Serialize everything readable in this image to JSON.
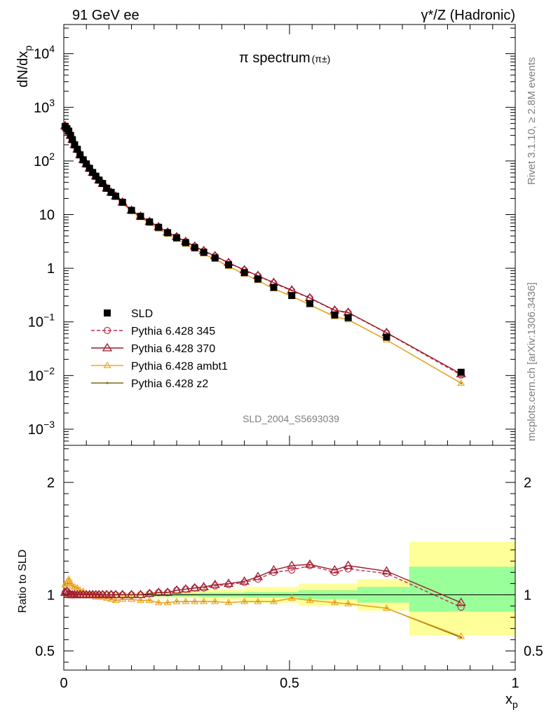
{
  "header": {
    "left": "91 GeV ee",
    "right": "γ*/Z (Hadronic)"
  },
  "side_labels": {
    "rivet": "Rivet 3.1.10, ≥ 2.8M events",
    "mcplots": "mcplots.cern.ch [arXiv:1306.3436]"
  },
  "chart_data": [
    {
      "type": "scatter",
      "panel": "main",
      "title": "π spectrum",
      "title_suffix": "(π±)",
      "ylabel": "dN/dx",
      "ylabel_sub": "p",
      "yscale": "log",
      "ylim": [
        0.0005,
        35000
      ],
      "xlim": [
        0,
        1
      ],
      "y_ticks": [
        {
          "v": 10000,
          "label": "10",
          "sup": "4"
        },
        {
          "v": 1000,
          "label": "10",
          "sup": "3"
        },
        {
          "v": 100,
          "label": "10",
          "sup": "2"
        },
        {
          "v": 10,
          "label": "10",
          "sup": ""
        },
        {
          "v": 1,
          "label": "1",
          "sup": ""
        },
        {
          "v": 0.1,
          "label": "10",
          "sup": "−1"
        },
        {
          "v": 0.01,
          "label": "10",
          "sup": "−2"
        },
        {
          "v": 0.001,
          "label": "10",
          "sup": "−3"
        }
      ],
      "watermark": "SLD_2004_S5693039",
      "legend_position": "bottom-left",
      "x": [
        0.003,
        0.007,
        0.011,
        0.015,
        0.019,
        0.024,
        0.03,
        0.036,
        0.043,
        0.05,
        0.057,
        0.064,
        0.071,
        0.078,
        0.086,
        0.095,
        0.105,
        0.115,
        0.13,
        0.15,
        0.17,
        0.19,
        0.21,
        0.23,
        0.25,
        0.27,
        0.29,
        0.31,
        0.335,
        0.365,
        0.4,
        0.43,
        0.465,
        0.505,
        0.545,
        0.6,
        0.63,
        0.715,
        0.88
      ],
      "series": [
        {
          "name": "SLD",
          "color": "#000000",
          "marker": "square",
          "line": "none",
          "values": [
            440,
            400,
            360,
            300,
            250,
            200,
            165,
            130,
            105,
            88,
            73,
            61,
            52,
            44,
            38,
            31,
            26,
            22,
            17,
            12,
            9.3,
            7.3,
            5.8,
            4.6,
            3.7,
            3.0,
            2.42,
            1.98,
            1.56,
            1.16,
            0.83,
            0.63,
            0.44,
            0.31,
            0.22,
            0.135,
            0.12,
            0.052,
            0.0115
          ]
        },
        {
          "name": "Pythia 6.428 345",
          "color": "#c0304a",
          "marker": "circle",
          "line": "dashed",
          "values": [
            450,
            410,
            365,
            300,
            250,
            200,
            165,
            130,
            105,
            88,
            73,
            61,
            52,
            44,
            38,
            31,
            26,
            22,
            17,
            12,
            9.3,
            7.4,
            5.9,
            4.7,
            3.85,
            3.15,
            2.56,
            2.1,
            1.68,
            1.26,
            0.92,
            0.72,
            0.53,
            0.38,
            0.277,
            0.162,
            0.148,
            0.062,
            0.0102
          ]
        },
        {
          "name": "Pythia 6.428 370",
          "color": "#9b1c2e",
          "marker": "triangle-open",
          "line": "solid",
          "values": [
            450,
            410,
            360,
            300,
            250,
            200,
            165,
            130,
            105,
            88,
            73,
            61,
            52,
            44,
            38,
            31,
            26,
            22,
            17,
            12,
            9.3,
            7.4,
            5.9,
            4.7,
            3.85,
            3.15,
            2.57,
            2.12,
            1.7,
            1.27,
            0.93,
            0.73,
            0.54,
            0.39,
            0.28,
            0.165,
            0.15,
            0.063,
            0.0107
          ]
        },
        {
          "name": "Pythia 6.428 ambt1",
          "color": "#f0a820",
          "marker": "triangle-small",
          "line": "solid",
          "values": [
            480,
            440,
            410,
            330,
            270,
            215,
            175,
            135,
            108,
            88,
            73,
            61,
            51,
            43,
            37,
            30,
            25,
            21,
            16.3,
            11.5,
            8.8,
            6.9,
            5.4,
            4.3,
            3.48,
            2.82,
            2.28,
            1.86,
            1.46,
            1.08,
            0.78,
            0.59,
            0.415,
            0.3,
            0.209,
            0.125,
            0.11,
            0.046,
            0.0072
          ]
        },
        {
          "name": "Pythia 6.428 z2",
          "color": "#7a6a12",
          "marker": "dot",
          "line": "solid",
          "values": [
            480,
            440,
            410,
            330,
            270,
            215,
            175,
            135,
            108,
            88,
            73,
            61,
            51,
            43,
            37,
            30,
            25,
            21,
            16.3,
            11.5,
            8.8,
            6.9,
            5.4,
            4.3,
            3.48,
            2.82,
            2.28,
            1.86,
            1.46,
            1.08,
            0.78,
            0.59,
            0.415,
            0.3,
            0.209,
            0.125,
            0.11,
            0.046,
            0.0072
          ]
        }
      ]
    },
    {
      "type": "line",
      "panel": "ratio",
      "ylabel": "Ratio to SLD",
      "xlabel": "x",
      "xlabel_sub": "p",
      "ylim": [
        0.33,
        2.33
      ],
      "xlim": [
        0,
        1
      ],
      "y_ticks": [
        {
          "v": 0.5,
          "label": "0.5"
        },
        {
          "v": 1,
          "label": "1"
        },
        {
          "v": 2,
          "label": "2"
        }
      ],
      "x_ticks": [
        {
          "v": 0,
          "label": "0"
        },
        {
          "v": 0.5,
          "label": "0.5"
        },
        {
          "v": 1,
          "label": "1"
        }
      ],
      "bands": [
        {
          "x0": 0.0,
          "x1": 0.2,
          "stat_lo": 0.99,
          "stat_hi": 1.01,
          "tot_lo": 0.98,
          "tot_hi": 1.02
        },
        {
          "x0": 0.2,
          "x1": 0.3,
          "stat_lo": 0.985,
          "stat_hi": 1.015,
          "tot_lo": 0.97,
          "tot_hi": 1.03
        },
        {
          "x0": 0.3,
          "x1": 0.4,
          "stat_lo": 0.98,
          "stat_hi": 1.02,
          "tot_lo": 0.95,
          "tot_hi": 1.05
        },
        {
          "x0": 0.4,
          "x1": 0.52,
          "stat_lo": 0.975,
          "stat_hi": 1.025,
          "tot_lo": 0.93,
          "tot_hi": 1.07
        },
        {
          "x0": 0.52,
          "x1": 0.65,
          "stat_lo": 0.96,
          "stat_hi": 1.04,
          "tot_lo": 0.9,
          "tot_hi": 1.1
        },
        {
          "x0": 0.65,
          "x1": 0.765,
          "stat_lo": 0.93,
          "stat_hi": 1.07,
          "tot_lo": 0.86,
          "tot_hi": 1.14
        },
        {
          "x0": 0.765,
          "x1": 1.0,
          "stat_lo": 0.85,
          "stat_hi": 1.25,
          "tot_lo": 0.64,
          "tot_hi": 1.47
        }
      ],
      "band_colors": {
        "stat": "#99ff99",
        "total": "#ffff99"
      },
      "series": [
        {
          "name": "Pythia 6.428 345",
          "color": "#c0304a",
          "values": [
            1.02,
            1.03,
            1.01,
            1.0,
            1.0,
            1.0,
            1.0,
            1.0,
            1.0,
            1.0,
            1.0,
            1.0,
            1.0,
            1.0,
            1.0,
            1.0,
            1.0,
            1.0,
            1.0,
            1.0,
            1.0,
            1.01,
            1.02,
            1.02,
            1.04,
            1.05,
            1.06,
            1.06,
            1.08,
            1.09,
            1.11,
            1.14,
            1.2,
            1.22,
            1.26,
            1.2,
            1.23,
            1.19,
            0.89
          ]
        },
        {
          "name": "Pythia 6.428 370",
          "color": "#9b1c2e",
          "values": [
            1.02,
            1.03,
            1.0,
            1.0,
            1.0,
            1.0,
            1.0,
            1.0,
            1.0,
            1.0,
            1.0,
            1.0,
            1.0,
            1.0,
            1.0,
            1.0,
            1.0,
            1.0,
            1.0,
            1.0,
            1.0,
            1.01,
            1.02,
            1.02,
            1.04,
            1.05,
            1.06,
            1.07,
            1.09,
            1.1,
            1.12,
            1.16,
            1.22,
            1.26,
            1.27,
            1.22,
            1.26,
            1.21,
            0.93
          ]
        },
        {
          "name": "Pythia 6.428 ambt1",
          "color": "#f0a820",
          "values": [
            1.09,
            1.1,
            1.14,
            1.1,
            1.08,
            1.07,
            1.06,
            1.04,
            1.03,
            1.0,
            1.0,
            1.0,
            0.98,
            0.98,
            0.98,
            0.97,
            0.96,
            0.95,
            0.96,
            0.96,
            0.95,
            0.95,
            0.93,
            0.93,
            0.94,
            0.94,
            0.94,
            0.94,
            0.94,
            0.93,
            0.94,
            0.94,
            0.94,
            0.97,
            0.95,
            0.93,
            0.92,
            0.88,
            0.63
          ]
        },
        {
          "name": "Pythia 6.428 z2",
          "color": "#7a6a12",
          "values": [
            1.09,
            1.1,
            1.14,
            1.1,
            1.08,
            1.07,
            1.06,
            1.04,
            1.03,
            1.0,
            1.0,
            1.0,
            0.98,
            0.98,
            0.98,
            0.97,
            0.96,
            0.95,
            0.96,
            0.96,
            0.95,
            0.95,
            0.93,
            0.93,
            0.94,
            0.94,
            0.94,
            0.94,
            0.94,
            0.93,
            0.94,
            0.94,
            0.94,
            0.97,
            0.95,
            0.93,
            0.92,
            0.88,
            0.62
          ]
        }
      ]
    }
  ]
}
